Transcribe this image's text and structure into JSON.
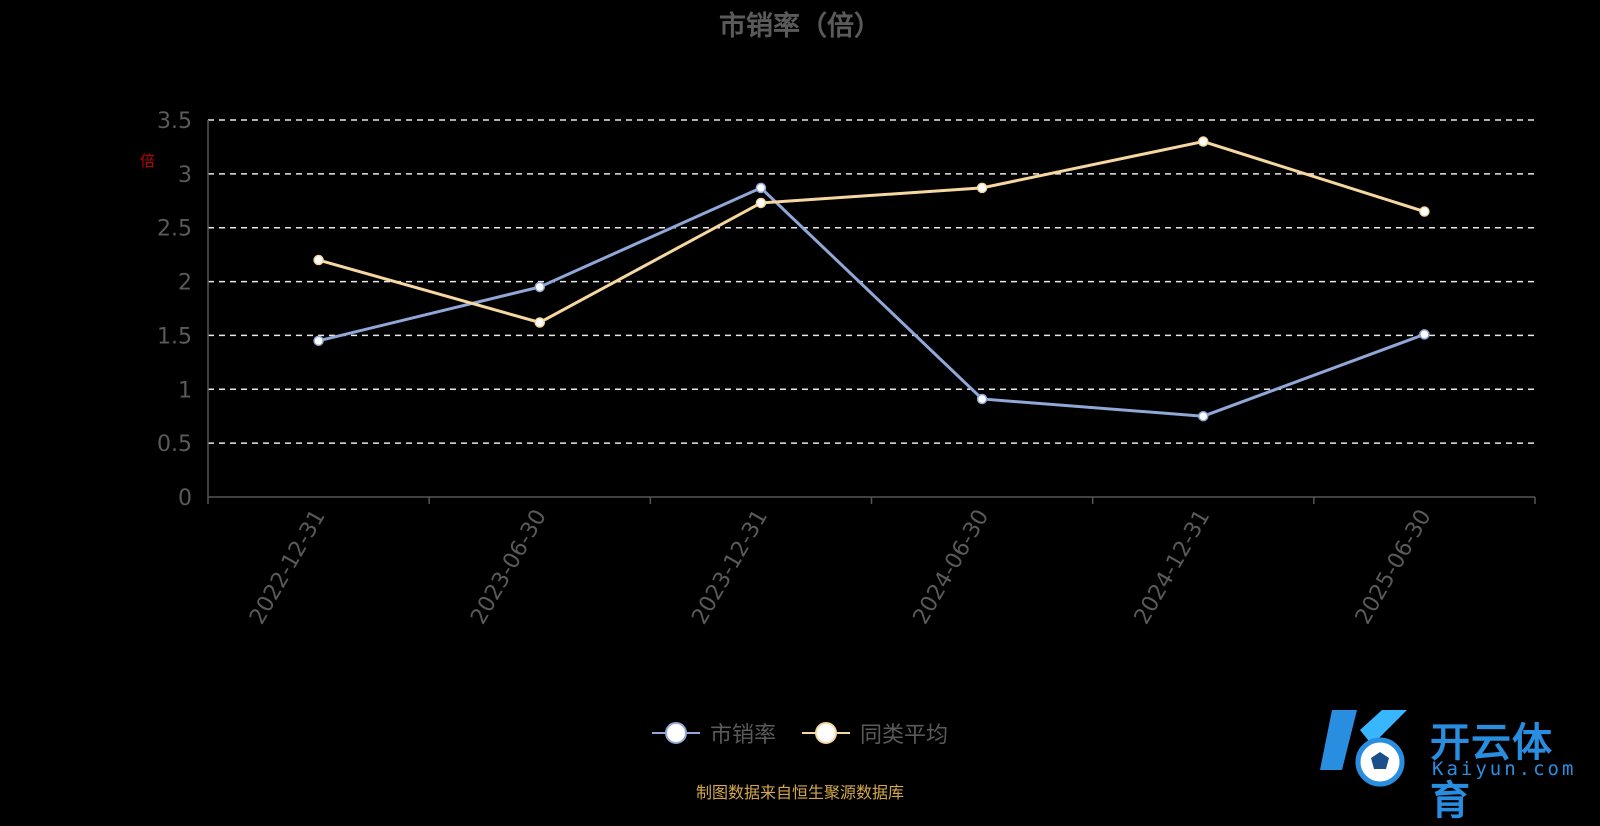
{
  "chart_data": {
    "type": "line",
    "title": "市销率（倍）",
    "ylabel": "倍",
    "xlabel": "",
    "categories": [
      "2022-12-31",
      "2023-06-30",
      "2023-12-31",
      "2024-06-30",
      "2024-12-31",
      "2025-06-30"
    ],
    "ylim": [
      0,
      3.5
    ],
    "yticks": [
      0,
      0.5,
      1,
      1.5,
      2,
      2.5,
      3,
      3.5
    ],
    "ytick_labels": [
      "0",
      "0.5",
      "1",
      "1.5",
      "2",
      "2.5",
      "3",
      "3.5"
    ],
    "grid": true,
    "legend_position": "bottom",
    "series": [
      {
        "name": "市销率",
        "color": "#8fa8d8",
        "values": [
          1.45,
          1.95,
          2.87,
          0.91,
          0.75,
          1.51
        ]
      },
      {
        "name": "同类平均",
        "color": "#f6d7a0",
        "values": [
          2.2,
          1.62,
          2.73,
          2.87,
          3.3,
          2.65
        ]
      }
    ]
  },
  "source_note": "制图数据来自恒生聚源数据库",
  "logo": {
    "name_cn": "开云体育",
    "name_en": "Kaiyun.com"
  }
}
